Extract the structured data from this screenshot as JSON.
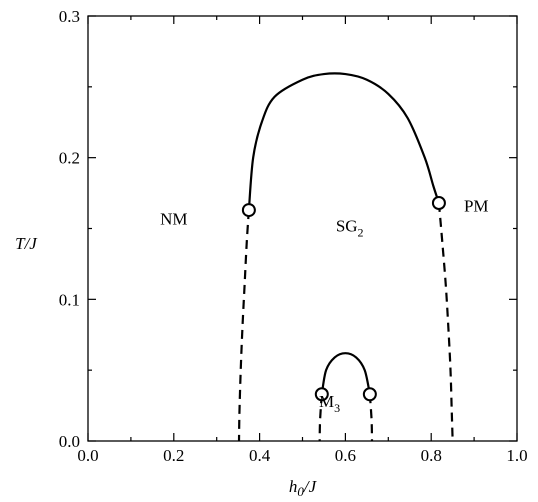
{
  "chart_data": {
    "type": "line",
    "title": "",
    "xlabel": "h",
    "xlabel_sub": "0",
    "xlabel_suffix": "/J",
    "ylabel": "T/J",
    "xlim": [
      0.0,
      1.0
    ],
    "ylim": [
      0.0,
      0.3
    ],
    "x_ticks": [
      0.0,
      0.2,
      0.4,
      0.6,
      0.8,
      1.0
    ],
    "x_tick_labels": [
      "0.0",
      "0.2",
      "0.4",
      "0.6",
      "0.8",
      "1.0"
    ],
    "y_ticks": [
      0.0,
      0.1,
      0.2,
      0.3
    ],
    "y_tick_labels": [
      "0.0",
      "0.1",
      "0.2",
      "0.3"
    ],
    "grid": false,
    "legend": "none",
    "series": [
      {
        "style": "solid",
        "points": [
          [
            0.375,
            0.163
          ],
          [
            0.385,
            0.2
          ],
          [
            0.405,
            0.225
          ],
          [
            0.435,
            0.243
          ],
          [
            0.5,
            0.255
          ],
          [
            0.55,
            0.259
          ],
          [
            0.6,
            0.259
          ],
          [
            0.65,
            0.255
          ],
          [
            0.7,
            0.245
          ],
          [
            0.745,
            0.228
          ],
          [
            0.785,
            0.2
          ],
          [
            0.805,
            0.18
          ],
          [
            0.818,
            0.168
          ]
        ]
      },
      {
        "style": "dashed",
        "points": [
          [
            0.375,
            0.163
          ],
          [
            0.37,
            0.14
          ],
          [
            0.365,
            0.11
          ],
          [
            0.36,
            0.08
          ],
          [
            0.356,
            0.05
          ],
          [
            0.353,
            0.02
          ],
          [
            0.352,
            0.0
          ]
        ]
      },
      {
        "style": "dashed",
        "points": [
          [
            0.818,
            0.168
          ],
          [
            0.826,
            0.14
          ],
          [
            0.834,
            0.11
          ],
          [
            0.84,
            0.08
          ],
          [
            0.845,
            0.05
          ],
          [
            0.848,
            0.02
          ],
          [
            0.85,
            0.0
          ]
        ]
      },
      {
        "style": "solid",
        "points": [
          [
            0.545,
            0.033
          ],
          [
            0.555,
            0.05
          ],
          [
            0.575,
            0.059
          ],
          [
            0.6,
            0.062
          ],
          [
            0.625,
            0.059
          ],
          [
            0.645,
            0.05
          ],
          [
            0.657,
            0.033
          ]
        ]
      },
      {
        "style": "dashed",
        "points": [
          [
            0.545,
            0.033
          ],
          [
            0.541,
            0.015
          ],
          [
            0.54,
            0.0
          ]
        ]
      },
      {
        "style": "dashed",
        "points": [
          [
            0.657,
            0.033
          ],
          [
            0.661,
            0.015
          ],
          [
            0.662,
            0.0
          ]
        ]
      }
    ],
    "markers": [
      [
        0.375,
        0.163
      ],
      [
        0.818,
        0.168
      ],
      [
        0.545,
        0.033
      ],
      [
        0.657,
        0.033
      ]
    ],
    "annotations": [
      {
        "text": "NM",
        "sub": "",
        "x": 0.2,
        "y": 0.153
      },
      {
        "text": "SG",
        "sub": "2",
        "x": 0.61,
        "y": 0.148
      },
      {
        "text": "PM",
        "sub": "",
        "x": 0.905,
        "y": 0.162
      },
      {
        "text": "M",
        "sub": "3",
        "x": 0.563,
        "y": 0.024
      }
    ]
  }
}
